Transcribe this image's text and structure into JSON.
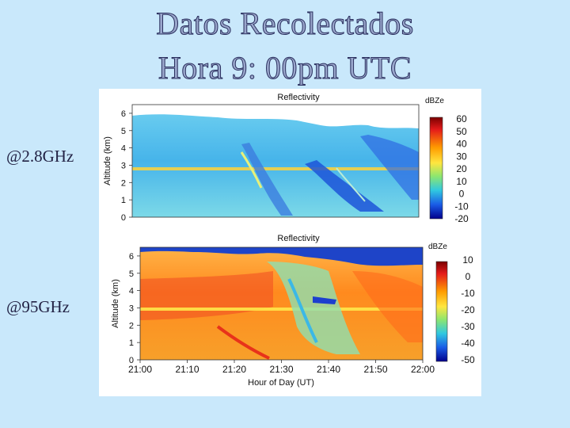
{
  "slide": {
    "title_line1": "Datos Recolectados",
    "title_line2": "Hora 9: 00pm UTC",
    "label_top": "@2.8GHz",
    "label_bottom": "@95GHz"
  },
  "chart_data": [
    {
      "type": "heatmap",
      "title": "Reflectivity",
      "ylabel": "Altitude (km)",
      "ylim": [
        0,
        6.5
      ],
      "yticks": [
        "0",
        "1",
        "2",
        "3",
        "4",
        "5",
        "6"
      ],
      "colorbar": {
        "label": "dBZe",
        "ticks": [
          "60",
          "50",
          "40",
          "30",
          "20",
          "10",
          "0",
          "-10",
          "-20"
        ],
        "range": [
          -20,
          60
        ]
      }
    },
    {
      "type": "heatmap",
      "title": "Reflectivity",
      "xlabel": "Hour of Day (UT)",
      "ylabel": "Altitude (km)",
      "ylim": [
        0,
        6.5
      ],
      "yticks": [
        "0",
        "1",
        "2",
        "3",
        "4",
        "5",
        "6"
      ],
      "xticks": [
        "21:00",
        "21:10",
        "21:20",
        "21:30",
        "21:40",
        "21:50",
        "22:00"
      ],
      "colorbar": {
        "label": "dBZe",
        "ticks": [
          "10",
          "0",
          "-10",
          "-20",
          "-30",
          "-40",
          "-50"
        ],
        "range": [
          -50,
          10
        ]
      }
    }
  ]
}
